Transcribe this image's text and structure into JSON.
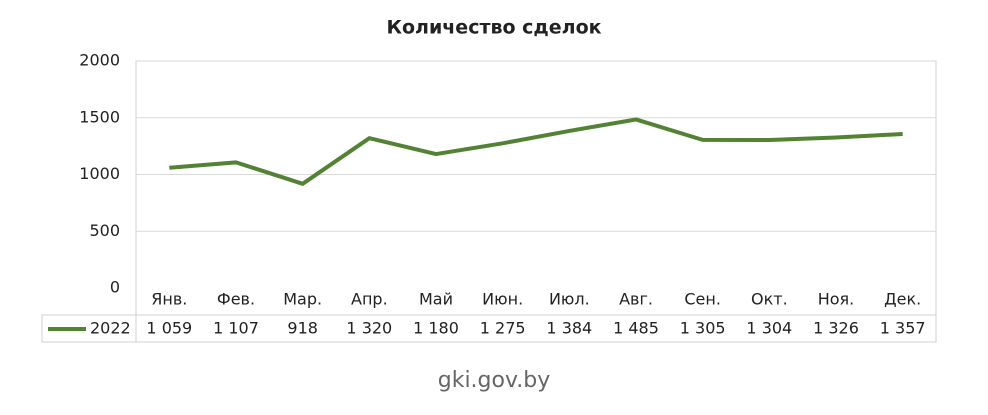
{
  "chart_data": {
    "type": "line",
    "title": "Количество сделок",
    "categories": [
      "Янв.",
      "Фев.",
      "Мар.",
      "Апр.",
      "Май",
      "Июн.",
      "Июл.",
      "Авг.",
      "Сен.",
      "Окт.",
      "Ноя.",
      "Дек."
    ],
    "series": [
      {
        "name": "2022",
        "color": "#548235",
        "values": [
          1059,
          1107,
          918,
          1320,
          1180,
          1275,
          1384,
          1485,
          1305,
          1304,
          1326,
          1357
        ],
        "value_labels": [
          "1 059",
          "1 107",
          "918",
          "1 320",
          "1 180",
          "1 275",
          "1 384",
          "1 485",
          "1 305",
          "1 304",
          "1 326",
          "1 357"
        ]
      }
    ],
    "ylim": [
      0,
      2000
    ],
    "yticks": [
      0,
      500,
      1000,
      1500,
      2000
    ],
    "grid": true,
    "source": "gki.gov.by"
  }
}
